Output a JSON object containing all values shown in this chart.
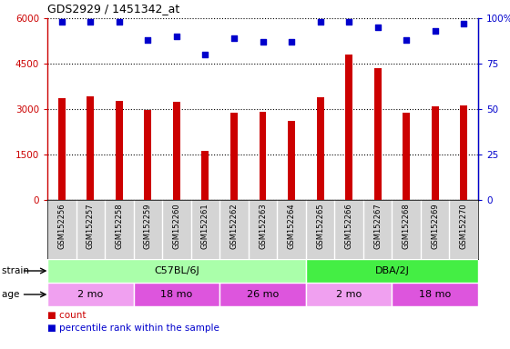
{
  "title": "GDS2929 / 1451342_at",
  "samples": [
    "GSM152256",
    "GSM152257",
    "GSM152258",
    "GSM152259",
    "GSM152260",
    "GSM152261",
    "GSM152262",
    "GSM152263",
    "GSM152264",
    "GSM152265",
    "GSM152266",
    "GSM152267",
    "GSM152268",
    "GSM152269",
    "GSM152270"
  ],
  "counts": [
    3350,
    3420,
    3270,
    2980,
    3230,
    1620,
    2870,
    2900,
    2600,
    3380,
    4800,
    4350,
    2870,
    3080,
    3130
  ],
  "percentiles": [
    98,
    98,
    98,
    88,
    90,
    80,
    89,
    87,
    87,
    98,
    98,
    95,
    88,
    93,
    97
  ],
  "count_color": "#cc0000",
  "percentile_color": "#0000cc",
  "bar_width": 0.25,
  "ylim_left": [
    0,
    6000
  ],
  "ylim_right": [
    0,
    100
  ],
  "yticks_left": [
    0,
    1500,
    3000,
    4500,
    6000
  ],
  "yticks_right": [
    0,
    25,
    50,
    75,
    100
  ],
  "strain_groups": [
    {
      "label": "C57BL/6J",
      "start": 0,
      "end": 9,
      "color": "#aaffaa"
    },
    {
      "label": "DBA/2J",
      "start": 9,
      "end": 15,
      "color": "#44ee44"
    }
  ],
  "age_groups": [
    {
      "label": "2 mo",
      "start": 0,
      "end": 3,
      "color": "#f0a0f0"
    },
    {
      "label": "18 mo",
      "start": 3,
      "end": 6,
      "color": "#dd55dd"
    },
    {
      "label": "26 mo",
      "start": 6,
      "end": 9,
      "color": "#dd55dd"
    },
    {
      "label": "2 mo",
      "start": 9,
      "end": 12,
      "color": "#f0a0f0"
    },
    {
      "label": "18 mo",
      "start": 12,
      "end": 15,
      "color": "#dd55dd"
    }
  ],
  "legend_count_label": "count",
  "legend_pct_label": "percentile rank within the sample",
  "strain_label": "strain",
  "age_label": "age",
  "sample_bg_color": "#d4d4d4",
  "plot_bg": "#ffffff",
  "grid_color": "#000000"
}
